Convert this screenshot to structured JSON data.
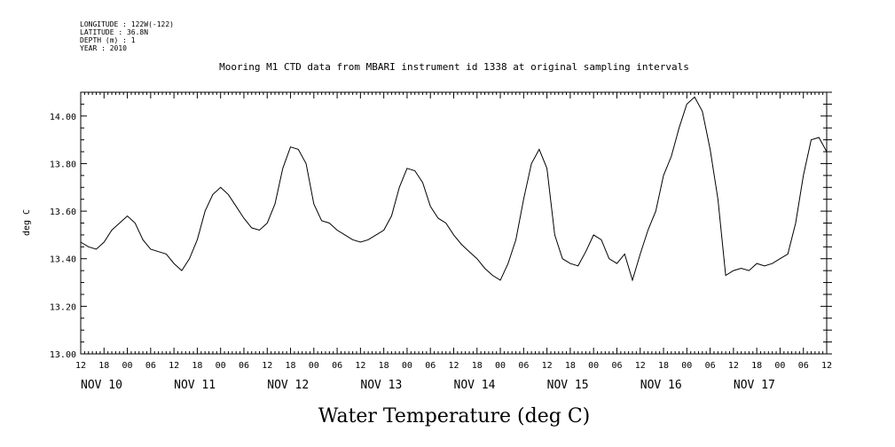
{
  "header": {
    "meta_lines": [
      "LONGITUDE : 122W(-122)",
      "LATITUDE : 36.8N",
      "DEPTH (m) : 1",
      "YEAR : 2010"
    ]
  },
  "chart_data": {
    "type": "line",
    "title": "Mooring M1 CTD data from MBARI instrument id 1338 at original sampling intervals",
    "xlabel": "Water Temperature (deg C)",
    "ylabel": "deg C",
    "x_unit": "hours",
    "xlim": [
      -12,
      180
    ],
    "ylim": [
      13.0,
      14.1
    ],
    "y_ticks": [
      "13.00",
      "13.20",
      "13.40",
      "13.60",
      "13.80",
      "14.00"
    ],
    "y_tick_values": [
      13.0,
      13.2,
      13.4,
      13.6,
      13.8,
      14.0
    ],
    "x_hour_labels": [
      "12",
      "18",
      "00",
      "06",
      "12",
      "18",
      "00",
      "06",
      "12",
      "18",
      "00",
      "06",
      "12",
      "18",
      "00",
      "06",
      "12",
      "18",
      "00",
      "06",
      "12",
      "18",
      "00",
      "06",
      "12",
      "18",
      "00",
      "06",
      "12",
      "18",
      "00",
      "06",
      "12"
    ],
    "day_labels": [
      "NOV 10",
      "NOV 11",
      "NOV 12",
      "NOV 13",
      "NOV 14",
      "NOV 15",
      "NOV 16",
      "NOV 17"
    ],
    "grid": false,
    "series": [
      {
        "color": "#000000",
        "points": [
          [
            -12,
            13.47
          ],
          [
            -10,
            13.45
          ],
          [
            -8,
            13.44
          ],
          [
            -6,
            13.47
          ],
          [
            -4,
            13.52
          ],
          [
            -2,
            13.55
          ],
          [
            0,
            13.58
          ],
          [
            2,
            13.55
          ],
          [
            4,
            13.48
          ],
          [
            6,
            13.44
          ],
          [
            8,
            13.43
          ],
          [
            10,
            13.42
          ],
          [
            12,
            13.38
          ],
          [
            14,
            13.35
          ],
          [
            16,
            13.4
          ],
          [
            18,
            13.48
          ],
          [
            20,
            13.6
          ],
          [
            22,
            13.67
          ],
          [
            24,
            13.7
          ],
          [
            26,
            13.67
          ],
          [
            28,
            13.62
          ],
          [
            30,
            13.57
          ],
          [
            32,
            13.53
          ],
          [
            34,
            13.52
          ],
          [
            36,
            13.55
          ],
          [
            38,
            13.63
          ],
          [
            40,
            13.78
          ],
          [
            42,
            13.87
          ],
          [
            44,
            13.86
          ],
          [
            46,
            13.8
          ],
          [
            48,
            13.63
          ],
          [
            50,
            13.56
          ],
          [
            52,
            13.55
          ],
          [
            54,
            13.52
          ],
          [
            56,
            13.5
          ],
          [
            58,
            13.48
          ],
          [
            60,
            13.47
          ],
          [
            62,
            13.48
          ],
          [
            64,
            13.5
          ],
          [
            66,
            13.52
          ],
          [
            68,
            13.58
          ],
          [
            70,
            13.7
          ],
          [
            72,
            13.78
          ],
          [
            74,
            13.77
          ],
          [
            76,
            13.72
          ],
          [
            78,
            13.62
          ],
          [
            80,
            13.57
          ],
          [
            82,
            13.55
          ],
          [
            84,
            13.5
          ],
          [
            86,
            13.46
          ],
          [
            88,
            13.43
          ],
          [
            90,
            13.4
          ],
          [
            92,
            13.36
          ],
          [
            94,
            13.33
          ],
          [
            96,
            13.31
          ],
          [
            98,
            13.38
          ],
          [
            100,
            13.48
          ],
          [
            102,
            13.65
          ],
          [
            104,
            13.8
          ],
          [
            106,
            13.86
          ],
          [
            108,
            13.78
          ],
          [
            110,
            13.5
          ],
          [
            112,
            13.4
          ],
          [
            114,
            13.38
          ],
          [
            116,
            13.37
          ],
          [
            118,
            13.43
          ],
          [
            120,
            13.5
          ],
          [
            122,
            13.48
          ],
          [
            124,
            13.4
          ],
          [
            126,
            13.38
          ],
          [
            128,
            13.42
          ],
          [
            130,
            13.31
          ],
          [
            132,
            13.42
          ],
          [
            134,
            13.52
          ],
          [
            136,
            13.6
          ],
          [
            138,
            13.75
          ],
          [
            140,
            13.83
          ],
          [
            142,
            13.95
          ],
          [
            144,
            14.05
          ],
          [
            146,
            14.08
          ],
          [
            148,
            14.02
          ],
          [
            150,
            13.86
          ],
          [
            152,
            13.65
          ],
          [
            154,
            13.33
          ],
          [
            156,
            13.35
          ],
          [
            158,
            13.36
          ],
          [
            160,
            13.35
          ],
          [
            162,
            13.38
          ],
          [
            164,
            13.37
          ],
          [
            166,
            13.38
          ],
          [
            168,
            13.4
          ],
          [
            170,
            13.42
          ],
          [
            172,
            13.55
          ],
          [
            174,
            13.75
          ],
          [
            176,
            13.9
          ],
          [
            178,
            13.91
          ],
          [
            180,
            13.85
          ]
        ]
      }
    ]
  }
}
